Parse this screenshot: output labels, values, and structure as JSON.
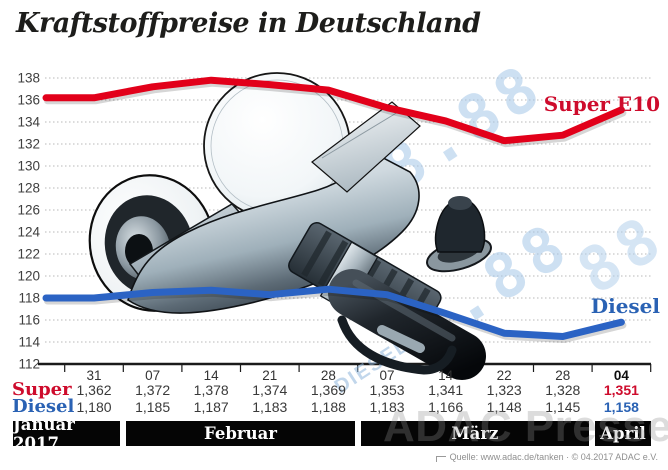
{
  "title": "Kraftstoffpreise in Deutschland",
  "watermark": "ADAC Presse",
  "source": {
    "text": "Quelle: www.adac.de/tanken · © 04.2017 ADAC e.V."
  },
  "colors": {
    "super_line": "#e2001a",
    "super_text": "#ce0b2c",
    "diesel_line": "#2b63c4",
    "diesel_text": "#2a62b4",
    "band_background": "#050505",
    "grid_line": "#b8b8b8",
    "axis": "#1a1a1a",
    "digital_blue": "#a6c8e8"
  },
  "background_display": {
    "super_label": "SUPER E10",
    "diesel_label": "DIESEL",
    "digits1": "8.88",
    "digits2": "8.88",
    "digits3": "88"
  },
  "chart_data": {
    "type": "line",
    "title": "Kraftstoffpreise in Deutschland",
    "ylim": [
      112,
      138
    ],
    "yticks": [
      138,
      136,
      134,
      132,
      130,
      128,
      126,
      124,
      122,
      120,
      118,
      116,
      114,
      112
    ],
    "grid": "horizontal dotted",
    "legend_position": "right, at line ends",
    "x_tick_labels": [
      "31",
      "07",
      "14",
      "21",
      "28",
      "07",
      "14",
      "22",
      "28",
      "04"
    ],
    "months": [
      {
        "label": "Januar 2017",
        "span": 1
      },
      {
        "label": "Februar",
        "span": 4
      },
      {
        "label": "März",
        "span": 4
      },
      {
        "label": "April",
        "span": 1
      }
    ],
    "series": [
      {
        "name": "Super E10",
        "color": "#e2001a",
        "values": [
          136.2,
          137.2,
          137.8,
          137.4,
          136.9,
          135.3,
          134.1,
          132.3,
          132.8,
          135.1
        ]
      },
      {
        "name": "Diesel",
        "color": "#2b63c4",
        "values": [
          118.0,
          118.5,
          118.7,
          118.3,
          118.8,
          118.3,
          116.6,
          114.8,
          114.5,
          115.8
        ]
      }
    ],
    "table": {
      "rows": [
        {
          "label": "Super",
          "color": "#ce0b2c",
          "values": [
            "1,362",
            "1,372",
            "1,378",
            "1,374",
            "1,369",
            "1,353",
            "1,341",
            "1,323",
            "1,328",
            "1,351"
          ]
        },
        {
          "label": "Diesel",
          "color": "#2a62b4",
          "values": [
            "1,180",
            "1,185",
            "1,187",
            "1,183",
            "1,188",
            "1,183",
            "1,166",
            "1,148",
            "1,145",
            "1,158"
          ]
        }
      ]
    }
  }
}
